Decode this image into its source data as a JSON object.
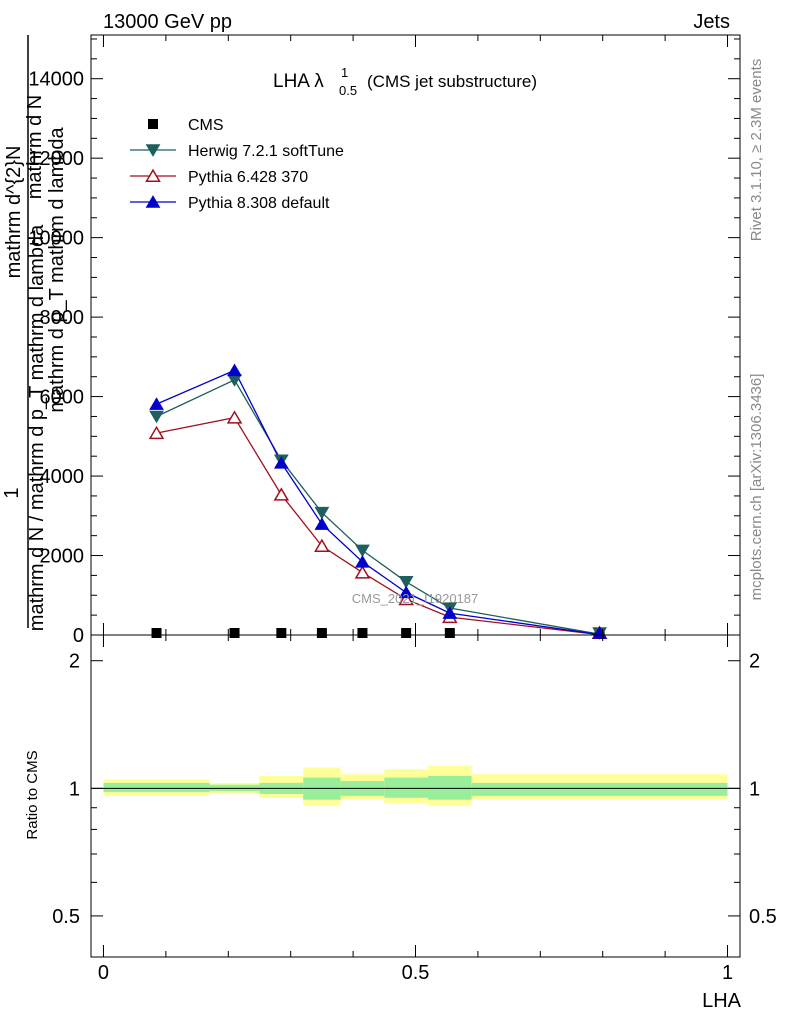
{
  "header": {
    "left": "13000 GeV pp",
    "right": "Jets"
  },
  "side_labels": {
    "rivet": "Rivet 3.1.10, ≥ 2.3M events",
    "mcplots": "mcplots.cern.ch [arXiv:1306.3436]"
  },
  "plot_title": {
    "main": "LHA λ",
    "sup": "1",
    "sub": "0.5",
    "suffix": "(CMS jet substructure)"
  },
  "watermark": "CMS_2021_I1920187",
  "ylabel_main": {
    "numerator_one": "1",
    "numerator_dn": "mathrm d^{2}N",
    "denominator_dn": "mathrm d N / mathrm d p_T mathrm d lambda",
    "overlap_a": "mathrm d N",
    "overlap_b": "mathrm d p_T mathrm d lambda"
  },
  "ylabel_ratio": "Ratio to CMS",
  "xlabel": "LHA",
  "legend": [
    {
      "name": "CMS",
      "color": "#000000",
      "marker": "square"
    },
    {
      "name": "Herwig 7.2.1 softTune",
      "color": "#1f5f5f",
      "marker": "triangle-down"
    },
    {
      "name": "Pythia 6.428 370",
      "color": "#a01020",
      "marker": "triangle-up-open"
    },
    {
      "name": "Pythia 8.308 default",
      "color": "#0000cc",
      "marker": "triangle-up"
    }
  ],
  "chart_data": {
    "type": "line",
    "x_ticks": [
      "0",
      "0.5",
      "1"
    ],
    "x_tick_values": [
      0,
      0.5,
      1
    ],
    "main_y_ticks": [
      "0",
      "2000",
      "4000",
      "6000",
      "8000",
      "10000",
      "12000",
      "14000"
    ],
    "main_y_tick_values": [
      0,
      2000,
      4000,
      6000,
      8000,
      10000,
      12000,
      14000
    ],
    "ratio_y_ticks": [
      "0.5",
      "1",
      "2"
    ],
    "ratio_y_tick_values": [
      0.5,
      1,
      2
    ],
    "xlim": [
      -0.02,
      1.02
    ],
    "ylim_main": [
      0,
      15100
    ],
    "ylim_ratio": [
      0.4,
      2.3
    ],
    "x": [
      0.085,
      0.21,
      0.285,
      0.35,
      0.415,
      0.485,
      0.555,
      0.795
    ],
    "series": [
      {
        "name": "CMS",
        "values": [
          30,
          30,
          30,
          30,
          30,
          30,
          30,
          30
        ]
      },
      {
        "name": "Herwig 7.2.1 softTune",
        "values": [
          5500,
          6420,
          4400,
          3080,
          2130,
          1340,
          680,
          20
        ]
      },
      {
        "name": "Pythia 6.428 370",
        "values": [
          5080,
          5470,
          3530,
          2240,
          1570,
          900,
          450,
          10
        ]
      },
      {
        "name": "Pythia 8.308 default",
        "values": [
          5810,
          6660,
          4330,
          2790,
          1840,
          1070,
          550,
          10
        ]
      }
    ],
    "ratio_bands": {
      "edges": [
        0,
        0.17,
        0.25,
        0.32,
        0.38,
        0.45,
        0.52,
        0.59,
        1.0
      ],
      "inner": [
        [
          0.98,
          1.03
        ],
        [
          0.985,
          1.02
        ],
        [
          0.97,
          1.03
        ],
        [
          0.94,
          1.06
        ],
        [
          0.96,
          1.04
        ],
        [
          0.95,
          1.06
        ],
        [
          0.94,
          1.07
        ],
        [
          0.96,
          1.03
        ]
      ],
      "outer": [
        [
          0.96,
          1.05
        ],
        [
          0.975,
          1.03
        ],
        [
          0.95,
          1.07
        ],
        [
          0.91,
          1.12
        ],
        [
          0.94,
          1.08
        ],
        [
          0.92,
          1.11
        ],
        [
          0.91,
          1.13
        ],
        [
          0.94,
          1.08
        ]
      ]
    }
  }
}
